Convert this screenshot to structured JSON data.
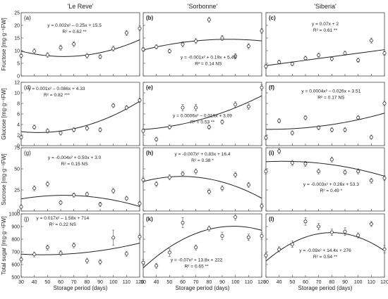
{
  "chart_data": {
    "type": "scatter",
    "columns": [
      "'Le Reve'",
      "'Sorbonne'",
      "'Siberia'"
    ],
    "xlabel": "Storage period (days)",
    "x": [
      30,
      40,
      50,
      60,
      70,
      80,
      90,
      100,
      110,
      120
    ],
    "xticks": [
      "30",
      "40",
      "50",
      "60",
      "70",
      "80",
      "90",
      "100",
      "110",
      "120"
    ],
    "rows": [
      {
        "ylabel": "Fructose [mg·g⁻¹FW]",
        "ylim": [
          0,
          25
        ],
        "yticks": [
          "0",
          "5",
          "10",
          "15",
          "20",
          "25"
        ],
        "panels": [
          {
            "label": "(a)",
            "y": [
              8.0,
              9.8,
              8.3,
              11.2,
              12.6,
              8.0,
              7.6,
              10.8,
              17.0,
              18.8
            ],
            "err": [
              0.8,
              1.0,
              0.9,
              1.0,
              1.0,
              0.9,
              0.8,
              1.0,
              1.0,
              1.0
            ],
            "eq": "y = 0.002x² – 0.25x + 15.5",
            "r2": "R² = 0.62 **",
            "fit": [
              0.002,
              -0.25,
              15.5
            ]
          },
          {
            "label": "(b)",
            "y": [
              10.5,
              11.5,
              9.8,
              12.5,
              13.8,
              22.2,
              15.0,
              7.8,
              11.8,
              17.8
            ],
            "err": [
              0.8,
              0.8,
              0.8,
              1.0,
              1.0,
              1.0,
              1.0,
              1.0,
              1.0,
              1.0
            ],
            "eq": "y = -0.001x² + 0.19x + 5.46",
            "r2": "R² = 0.14 NS",
            "fit": [
              -0.001,
              0.19,
              5.46
            ]
          },
          {
            "label": "(c)",
            "y": [
              3.8,
              5.5,
              4.8,
              7.0,
              8.2,
              6.8,
              9.0,
              6.2,
              14.0,
              9.0
            ],
            "err": [
              0.8,
              0.8,
              0.8,
              0.8,
              0.8,
              0.8,
              0.8,
              0.8,
              1.0,
              0.8
            ],
            "eq": "y = 0.07x + 2",
            "r2": "R² = 0.61 **",
            "fit": [
              0,
              0.07,
              2
            ]
          }
        ]
      },
      {
        "ylabel": "Glucose [mg·g⁻¹FW]",
        "ylim": [
          0,
          12
        ],
        "yticks": [
          "0",
          "2",
          "4",
          "6",
          "8",
          "10",
          "12"
        ],
        "panels": [
          {
            "label": "(d)",
            "y": [
              1.6,
              3.5,
              2.8,
              2.4,
              3.0,
              3.3,
              3.0,
              7.6,
              7.2,
              8.6
            ],
            "err": [
              0.4,
              0.4,
              0.4,
              0.4,
              0.4,
              0.4,
              0.4,
              0.4,
              0.4,
              0.4
            ],
            "eq": "y = 0.001x² – 0.086x + 4.33",
            "r2": "R² = 0.82 ***",
            "fit": [
              0.001,
              -0.086,
              4.33
            ]
          },
          {
            "label": "(e)",
            "y": [
              2.8,
              1.2,
              3.5,
              7.2,
              7.2,
              3.5,
              4.5,
              7.8,
              7.4,
              11.0
            ],
            "err": [
              0.4,
              0.4,
              0.4,
              0.6,
              0.6,
              0.4,
              0.4,
              0.5,
              0.5,
              0.5
            ],
            "eq": "y = 0.0006x² – 0.019x + 3.09",
            "r2": "R² = 0.53 **",
            "fit": [
              0.0006,
              -0.019,
              3.09
            ]
          },
          {
            "label": "(f)",
            "y": [
              1.5,
              4.7,
              2.4,
              5.3,
              3.4,
              3.0,
              3.0,
              5.3,
              1.6,
              8.0
            ],
            "err": [
              0.4,
              0.4,
              0.4,
              0.4,
              0.4,
              0.4,
              0.4,
              0.4,
              0.4,
              0.4
            ],
            "eq": "y = 0.0004x² – 0.026x + 3.51",
            "r2": "R² = 0.17 NS",
            "fit": [
              0.0004,
              -0.026,
              3.51
            ]
          }
        ]
      },
      {
        "ylabel": "Sucrose [mg·g⁻¹FW]",
        "ylim": [
          0,
          75
        ],
        "yticks": [
          "0",
          "25",
          "50",
          "75"
        ],
        "panels": [
          {
            "label": "(g)",
            "y": [
              5.0,
              27.0,
              32.0,
              10.0,
              19.0,
              20.0,
              8.0,
              24.0,
              15.0,
              9.0
            ],
            "err": [
              2.5,
              3.0,
              3.0,
              2.5,
              2.5,
              2.5,
              2.5,
              3.0,
              2.5,
              2.5
            ],
            "eq": "y = -0.004x² + 0.50x + 3.0",
            "r2": "R² = 0.15 NS",
            "fit": [
              -0.004,
              0.5,
              3.0
            ]
          },
          {
            "label": "(h)",
            "y": [
              37.0,
              32.0,
              40.0,
              44.0,
              47.0,
              23.0,
              27.0,
              43.0,
              31.0,
              6.0
            ],
            "err": [
              3.0,
              3.0,
              3.0,
              3.0,
              3.0,
              3.0,
              3.0,
              3.0,
              3.0,
              3.0
            ],
            "eq": "y = -0.007x² + 0.83x + 16.4",
            "r2": "R² = 0.38 *",
            "fit": [
              -0.007,
              0.83,
              16.4
            ]
          },
          {
            "label": "(i)",
            "y": [
              47.0,
              71.0,
              57.0,
              56.0,
              47.0,
              61.0,
              46.0,
              47.0,
              36.0,
              39.0
            ],
            "err": [
              3.0,
              3.0,
              3.0,
              3.0,
              3.0,
              3.0,
              3.0,
              3.0,
              3.0,
              3.0
            ],
            "eq": "y = -0.003x² + 0.26x + 53.3",
            "r2": "R² = 0.49 *",
            "fit": [
              -0.003,
              0.26,
              53.3
            ]
          }
        ]
      },
      {
        "ylabel": "Total sugar [mg·g⁻¹FW]",
        "ylim": [
          500,
          1000
        ],
        "yticks": [
          "500",
          "600",
          "700",
          "800",
          "900",
          "1000"
        ],
        "panels": [
          {
            "label": "(j)",
            "y": [
              640,
              680,
              735,
              690,
              752,
              630,
              620,
              812,
              685,
              820
            ],
            "err": [
              20,
              20,
              20,
              20,
              20,
              20,
              20,
              60,
              20,
              20
            ],
            "eq": "y = 0.017x² – 1.58x + 714",
            "r2": "R² = 0.22 NS",
            "fit": [
              0.017,
              -1.58,
              714
            ]
          },
          {
            "label": "(k)",
            "y": [
              615,
              590,
              695,
              930,
              735,
              885,
              825,
              975,
              815,
              825
            ],
            "err": [
              25,
              20,
              30,
              40,
              20,
              20,
              30,
              25,
              25,
              25
            ],
            "eq": "y = -0.07x² + 13.8x + 222",
            "r2": "R² = 0.65 **",
            "fit": [
              -0.07,
              13.8,
              222
            ]
          },
          {
            "label": "(l)",
            "y": [
              672,
              720,
              760,
              940,
              900,
              855,
              860,
              830,
              920,
              720
            ],
            "err": [
              20,
              20,
              25,
              30,
              25,
              25,
              30,
              20,
              20,
              30
            ],
            "eq": "y = -0.09x² + 14.4x + 276",
            "r2": "R² = 0.54 **",
            "fit": [
              -0.09,
              14.4,
              276
            ]
          }
        ]
      }
    ]
  }
}
